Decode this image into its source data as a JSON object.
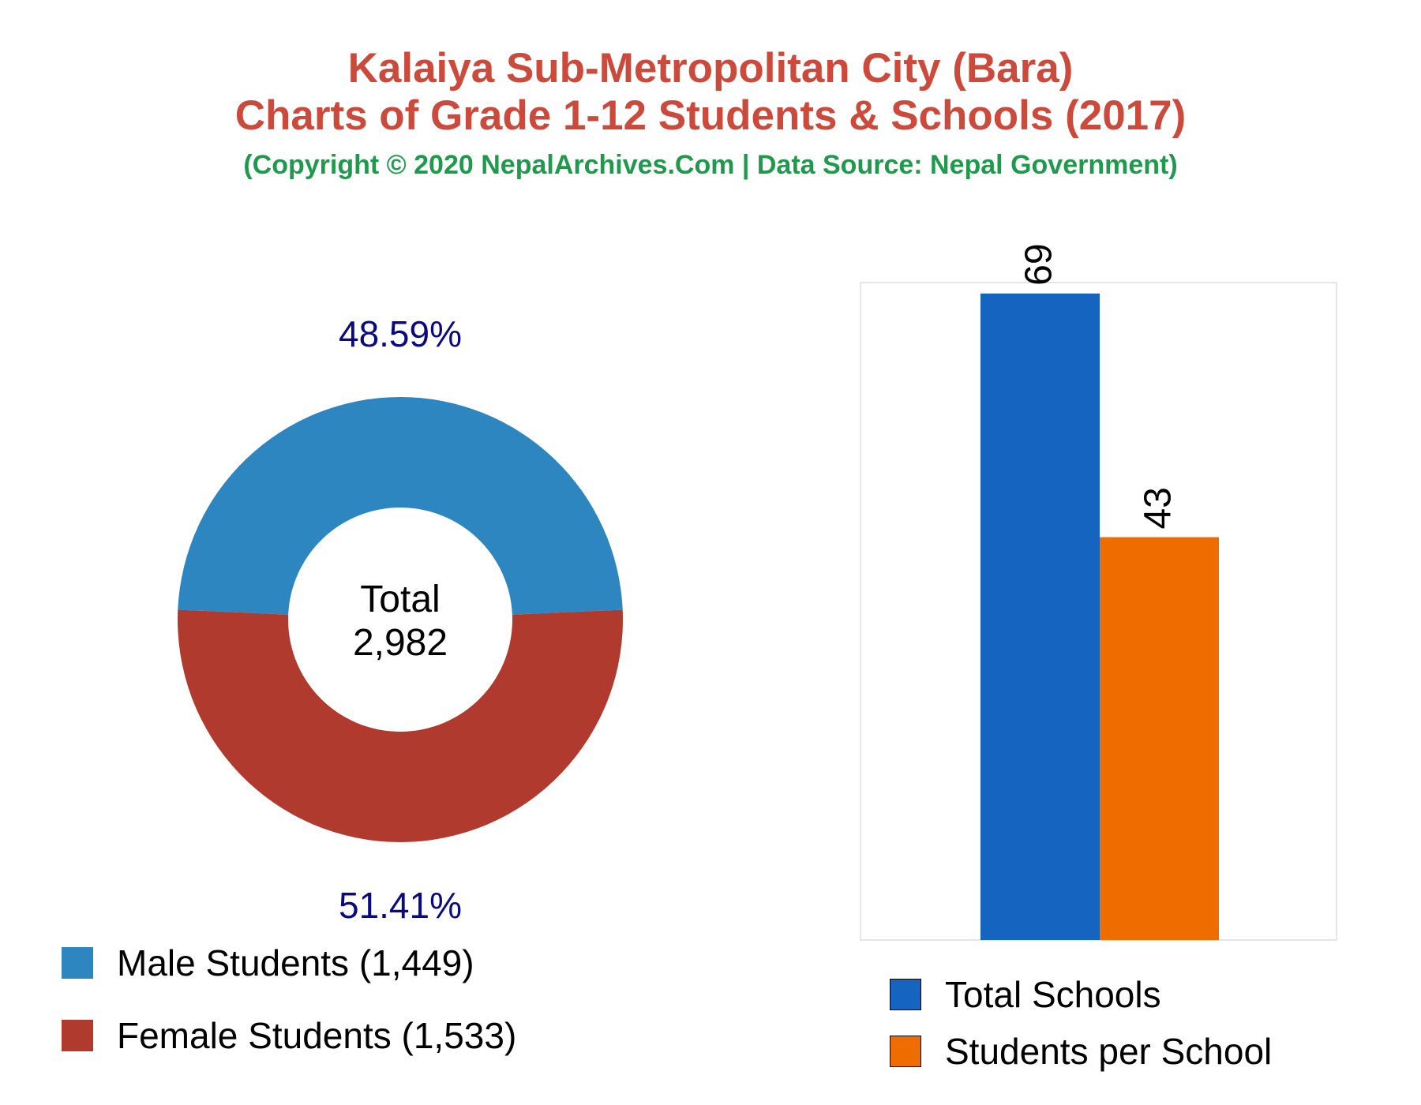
{
  "title_line1": "Kalaiya Sub-Metropolitan City (Bara)",
  "title_line2": "Charts of Grade 1-12 Students & Schools (2017)",
  "subtitle": "(Copyright © 2020 NepalArchives.Com | Data Source: Nepal Government)",
  "colors": {
    "title": "#cc4a3b",
    "subtitle": "#1f9a4c",
    "male": "#2e86c1",
    "female": "#b03a2e",
    "total_schools": "#1565c0",
    "students_per_school": "#ef6c00",
    "pct_label": "#0a0a80"
  },
  "chart_data": [
    {
      "type": "pie",
      "variant": "donut",
      "center_label_line1": "Total",
      "center_label_line2": "2,982",
      "slices": [
        {
          "name": "Male Students",
          "value": 1449,
          "percent_label": "48.59%",
          "legend_label": "Male Students (1,449)",
          "color": "#2e86c1"
        },
        {
          "name": "Female Students",
          "value": 1533,
          "percent_label": "51.41%",
          "legend_label": "Female Students (1,533)",
          "color": "#b03a2e"
        }
      ],
      "legend_position": "bottom-left"
    },
    {
      "type": "bar",
      "categories": [
        "Total Schools",
        "Students per School"
      ],
      "values": [
        69,
        43
      ],
      "value_labels": [
        "69",
        "43"
      ],
      "colors": [
        "#1565c0",
        "#ef6c00"
      ],
      "ylim": [
        0,
        70
      ],
      "grid": false,
      "legend_position": "bottom"
    }
  ]
}
